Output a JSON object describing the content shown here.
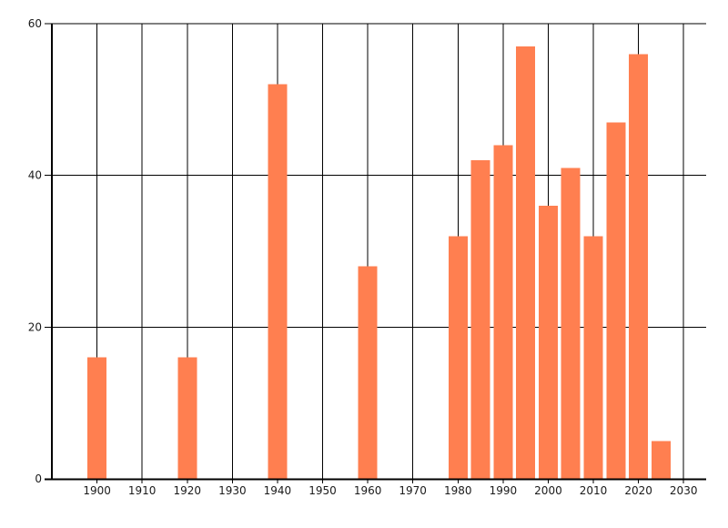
{
  "chart_data": {
    "type": "bar",
    "title": "",
    "xlabel": "",
    "ylabel": "",
    "x": [
      1900,
      1920,
      1940,
      1960,
      1980,
      1985,
      1990,
      1995,
      2000,
      2005,
      2010,
      2015,
      2020,
      2025
    ],
    "values": [
      16,
      16,
      52,
      28,
      32,
      42,
      44,
      57,
      36,
      41,
      32,
      47,
      56,
      5
    ],
    "xlim": [
      1890,
      2035
    ],
    "ylim": [
      0,
      60
    ],
    "x_ticks": [
      1900,
      1910,
      1920,
      1930,
      1940,
      1950,
      1960,
      1970,
      1980,
      1990,
      2000,
      2010,
      2020,
      2030
    ],
    "x_tick_labels": [
      "1900",
      "1910",
      "1920",
      "1930",
      "1940",
      "1950",
      "1960",
      "1970",
      "1980",
      "1990",
      "2000",
      "2010",
      "2020",
      "2030"
    ],
    "y_ticks": [
      0,
      20,
      40,
      60
    ],
    "y_tick_labels": [
      "0",
      "20",
      "40",
      "60"
    ],
    "grid": "both",
    "legend_position": "none",
    "colors": {
      "bar": "#FF7F50",
      "grid": "#000000",
      "axis": "#000000",
      "tick_label": "#1a1a1a",
      "background": "#FFFFFF"
    }
  }
}
